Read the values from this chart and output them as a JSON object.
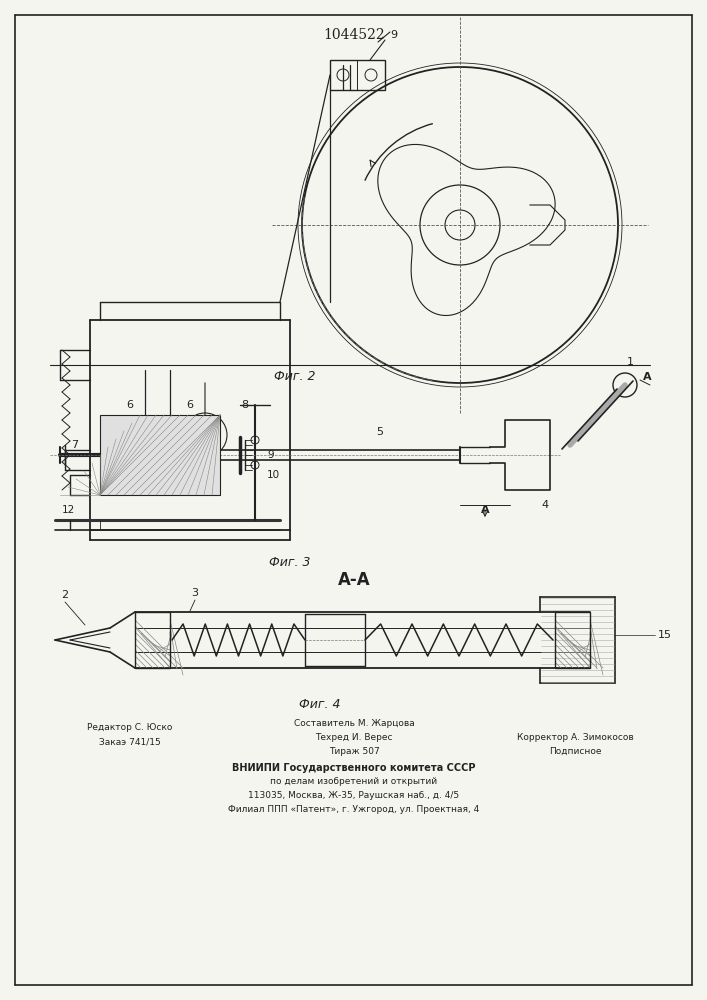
{
  "patent_number": "1044522",
  "background_color": "#f5f5f0",
  "line_color": "#222222",
  "fig2_caption": "Фиг. 2",
  "fig3_caption": "Фиг. 3",
  "fig4_caption": "Фиг. 4",
  "section_label": "А-А",
  "footer_line1_left": "Редактор С. Юско",
  "footer_line1_center": "Составитель М. Жарцова",
  "footer_line2_left": "Закаэ 741/15",
  "footer_line2_center": "Техред И. Верес",
  "footer_line2_right": "Корректор А. Зимокосов",
  "footer_line3_center": "Тираж 507",
  "footer_line3_right": "Подписное",
  "footer_vniiipi": "ВНИИПИ Государственного комитета СССР",
  "footer_po_delam": "по делам изобретений и открытий",
  "footer_address": "113035, Москва, Ж-35, Раушская наб., д. 4/5",
  "footer_filial": "Филиал ППП «Патент», г. Ужгород, ул. Проектная, 4"
}
